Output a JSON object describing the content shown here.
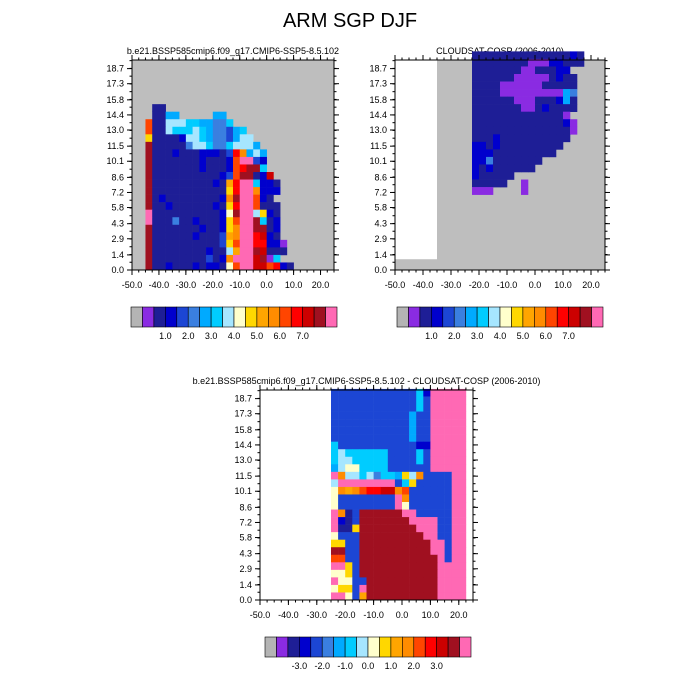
{
  "title": "ARM SGP DJF",
  "chart_data": [
    {
      "type": "heatmap",
      "title": "b.e21.BSSP585cmip6.f09_g17.CMIP6-SSP5-8.5.102",
      "xticks": [
        "-50.0",
        "-40.0",
        "-30.0",
        "-20.0",
        "-10.0",
        "0.0",
        "10.0",
        "20.0"
      ],
      "yticks": [
        "0.0",
        "1.4",
        "2.9",
        "4.3",
        "5.8",
        "7.2",
        "8.6",
        "10.1",
        "11.5",
        "13.0",
        "14.4",
        "15.8",
        "17.3",
        "18.7"
      ],
      "xlim": [
        -50,
        25
      ],
      "ylim": [
        0,
        19.5
      ],
      "background": "#bebebe",
      "colorbar": {
        "labels": [
          "1.0",
          "2.0",
          "3.0",
          "4.0",
          "5.0",
          "6.0",
          "7.0"
        ],
        "ticks": [
          2.5,
          4.5,
          6.5,
          8.5,
          10.5,
          12.5,
          14.5
        ]
      },
      "grid": {
        "x0": -50,
        "dx": 2.5,
        "y0": 0,
        "dy": 0.7,
        "rows": [
          "..............................",
          "..............................",
          "..............................",
          "..............................",
          "..............................",
          "..............................",
          "..............................",
          "..............................",
          "...BB.........................",
          "..bBBFF.....FF................",
          "..XBBHHHGGFFEEG...............",
          "..XBBHGGGHGFEEDFG.............",
          "..JBBBBCHHGFEEDFHH............",
          "..PBBBBBEHHGEEGHHHF...........",
          "..PBBBCBBBCCCBDNLFHF..........",
          "..PBBBBBBBCBBBCMQQDC..........",
          "..PBBBBBBBCBBBCMNPPG..........",
          "..PBBBBBBBBBBCDMPPBCO.........",
          "..PBBBBBBBBBCBKNQQGCCB........",
          "..PBBBBBBBBBBBJNQQLCCC........",
          "..PBCBBBBBBBBCLPQQMCB.........",
          "..PBBCBBBBBBCBJNQQMBBB........",
          "..RBBBBBBBBBBCIPQQHJCB........",
          "..UBBBEBBCBBBCJMQQPGBC........",
          "..PBBBBBBBCBBCJLQQPPBC........",
          "..PBBBBBBCBBBDKLQQNOCB........",
          "..PBBBBBBBBBBDJMQQNNCCA.......",
          "..PBBBBBBBBCBBHKQQPOBBB.......",
          "..PBBBBBBBBDBCLQQQOPAG........",
          "..PBBCBBBCBCCBIMQQOOMNCB......"
        ],
        "key": {
          "A": 1.0,
          "B": 1.5,
          "C": 2.0,
          "D": 2.5,
          "E": 3.0,
          "F": 3.5,
          "G": 4.0,
          "H": 4.5,
          "I": 5.0,
          "J": 5.5,
          "K": 6.0,
          "L": 6.5,
          "M": 7.0,
          "N": 7.5,
          "O": 8.0,
          "P": 8.5,
          "Q": 9.0,
          "R": 9.5,
          "U": 10.0,
          "X": 7.2
        }
      }
    },
    {
      "type": "heatmap",
      "title": "CLOUDSAT-COSP (2006-2010)",
      "xticks": [
        "-50.0",
        "-40.0",
        "-30.0",
        "-20.0",
        "-10.0",
        "0.0",
        "10.0",
        "20.0"
      ],
      "yticks": [
        "0.0",
        "1.4",
        "2.9",
        "4.3",
        "5.8",
        "7.2",
        "8.6",
        "10.1",
        "11.5",
        "13.0",
        "14.4",
        "15.8",
        "17.3",
        "18.7"
      ],
      "xlim": [
        -50,
        25
      ],
      "ylim": [
        0,
        19.5
      ],
      "background": "#bebebe",
      "colorbar": {
        "labels": [
          "1.0",
          "2.0",
          "3.0",
          "4.0",
          "5.0",
          "6.0",
          "7.0"
        ],
        "ticks": [
          2.5,
          4.5,
          6.5,
          8.5,
          10.5,
          12.5,
          14.5
        ]
      },
      "grid": {
        "x0": -50,
        "dx": 2.5,
        "y0": 0,
        "dy": 0.7,
        "rows": [
          "..............................",
          "...........BBBBBBBBBBBBBBCB...",
          "...........BBBBBBBBAAACCBBB...",
          "...........BBBBBBBAABBBCC.....",
          "...........BBBBBBAAAAABCBB....",
          "...........BBBBAAAAAABBBBB....",
          "...........BBBBAAAAAAAAAFE....",
          "...........BBBBBBAAABBBCFB....",
          "...........BBBBBBBAABCBBBB....",
          "...........BBBBBBBBBBBBBA.....",
          "...........BBBBBBBBBBBBBCA....",
          "...........BBBBBBBBBBBBBBA....",
          "...........BBBCBBBBBBBBBB.....",
          "...........CCBCBBBBBBBBB......",
          "...........CCCBBBBBBBBB.......",
          "...........CCEBBBBBBB.........",
          "...........CBCBBBBBB..........",
          "...........CBBBBB.............",
          "...........BBBBB..A...........",
          "...........AAA....A...........",
          "..............................",
          "..............................",
          "..............................",
          "..............................",
          "..............................",
          "..............................",
          "..............................",
          "..............................",
          "..............................",
          ".............................."
        ],
        "key": {
          "A": 1.0,
          "B": 1.5,
          "C": 2.0,
          "E": 3.0,
          "F": 3.5
        }
      },
      "white_region": {
        "x": [
          -50,
          -35
        ],
        "y": [
          1.0,
          19.5
        ]
      }
    },
    {
      "type": "heatmap",
      "title": "b.e21.BSSP585cmip6.f09_g17.CMIP6-SSP5-8.5.102 - CLOUDSAT-COSP (2006-2010)",
      "xticks": [
        "-50.0",
        "-40.0",
        "-30.0",
        "-20.0",
        "-10.0",
        "0.0",
        "10.0",
        "20.0"
      ],
      "yticks": [
        "0.0",
        "1.4",
        "2.9",
        "4.3",
        "5.8",
        "7.2",
        "8.6",
        "10.1",
        "11.5",
        "13.0",
        "14.4",
        "15.8",
        "17.3",
        "18.7"
      ],
      "xlim": [
        -50,
        25
      ],
      "ylim": [
        0,
        19.5
      ],
      "background": "#ffffff",
      "colorbar": {
        "labels": [
          "-3.0",
          "-2.0",
          "-1.0",
          "0.0",
          "1.0",
          "2.0",
          "3.0"
        ],
        "ticks": [
          2.5,
          4.5,
          6.5,
          8.5,
          10.5,
          12.5,
          14.5
        ]
      },
      "grid": {
        "x0": -50,
        "dx": 2.5,
        "y0": 0,
        "dy": 0.7,
        "rows": [
          "..............................",
          "..............................",
          "..........bbbbbbbbbbbbFBYYYYY.",
          "..........bbbbbbbbbbbbFbYYYYY.",
          "..........bbbbbbbbbbbbFbYYYYY.",
          "..........bbbbbbbbbbbcCbYYYYY.",
          "..........bbbbbbbbbbbcCbYYYYY.",
          "..........bbbbbbbbbbbcCbYYYYY.",
          "..........bbbbbbbbbbbcCbYYYYY.",
          "..........dbbbbbbbbbbbBBYYYYY.",
          "..........deddddddbbbbdbYYYYY.",
          "..........deedddddbbbbdbYYYYY.",
          "..........ceffddddbbbbCbYYYYY.",
          "..........RKGGFGDFFcgeKbbbbYY.",
          "..........GRRQQRRQRCdgCbbbbYY.",
          "..........HKJKLMMNNKLbbbbbbYY.",
          "..........HbbbbbbbbRKbbbbbbYY.",
          "..........HbbbbbbbbRHbbbbbbYY.",
          "..........SKAbPPPPPPUUbbbbbYY.",
          "..........SBAbPPPPPPPZXXXbbYY.",
          "..........QAAIPPPPPPPPWQXbbYY.",
          "..........HbbbPPPPPPPPPWWbbYY.",
          "..........IIbbPPPPPPPPPPWYbYY.",
          "..........PPbbPPPPPPPPPPSQbYY.",
          "..........LLbbPPPPPPPPPPPVbYY.",
          "..........QQIbPPPPPPPPPPPZXYY.",
          "..........HHIbPPPPPPPPPPPQYYY.",
          "..........QHHbbPPPPPPPPPPQYYY.",
          "..........HIIbQPPPPPPPPPPQYYY.",
          "..........QQHbJPPPPPPPPPPYYYY."
        ],
        "key": {
          "A": -3.0,
          "B": -2.5,
          "C": -2.0,
          "D": -1.5,
          "E": -1.0,
          "F": -0.5,
          "G": 0.0,
          "H": 0.5,
          "I": 1.0,
          "J": 1.5,
          "K": 2.0,
          "L": 2.5,
          "M": 3.0,
          "N": 3.5,
          "P": 4.0,
          "Q": 4.5,
          "R": 5.0,
          "S": 5.5,
          "U": 6.0,
          "V": 6.5,
          "W": 7.0,
          "X": 7.5,
          "Y": 8.0,
          "Z": 8.5,
          "b": -2.0,
          "c": -1.0,
          "d": -0.5,
          "e": 0.0,
          "f": 0.5,
          "g": 1.0
        }
      }
    }
  ]
}
